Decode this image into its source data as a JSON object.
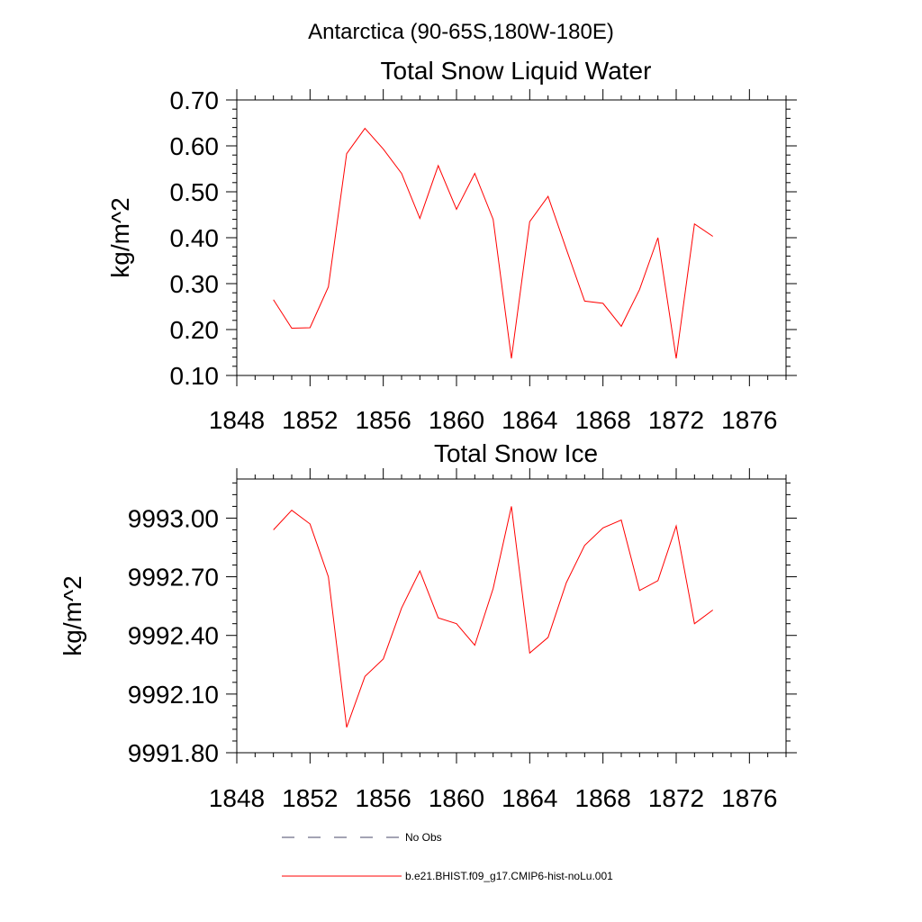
{
  "figure": {
    "supertitle": "Antarctica (90-65S,180W-180E)"
  },
  "legend": [
    {
      "label": "No Obs",
      "color": "#4a4a6a",
      "dash": true
    },
    {
      "label": "b.e21.BHIST.f09_g17.CMIP6-hist-noLu.001",
      "color": "#ff0000",
      "dash": false
    }
  ],
  "chart_data": [
    {
      "type": "line",
      "title": "Total Snow Liquid Water",
      "xlabel": "",
      "ylabel": "kg/m^2",
      "xlim": [
        1848,
        1878
      ],
      "ylim": [
        0.1,
        0.7
      ],
      "xticks": [
        1848,
        1852,
        1856,
        1860,
        1864,
        1868,
        1872,
        1876
      ],
      "yticks": [
        "0.10",
        "0.20",
        "0.30",
        "0.40",
        "0.50",
        "0.60",
        "0.70"
      ],
      "grid": false,
      "series": [
        {
          "name": "b.e21.BHIST.f09_g17.CMIP6-hist-noLu.001",
          "color": "#ff0000",
          "x": [
            1850,
            1851,
            1852,
            1853,
            1854,
            1855,
            1856,
            1857,
            1858,
            1859,
            1860,
            1861,
            1862,
            1863,
            1864,
            1865,
            1866,
            1867,
            1868,
            1869,
            1870,
            1871,
            1872,
            1873,
            1874
          ],
          "y": [
            0.265,
            0.203,
            0.204,
            0.293,
            0.583,
            0.638,
            0.593,
            0.54,
            0.442,
            0.557,
            0.462,
            0.54,
            0.44,
            0.137,
            0.435,
            0.49,
            0.375,
            0.262,
            0.257,
            0.207,
            0.287,
            0.4,
            0.137,
            0.43,
            0.403
          ]
        }
      ]
    },
    {
      "type": "line",
      "title": "Total Snow Ice",
      "xlabel": "",
      "ylabel": "kg/m^2",
      "xlim": [
        1848,
        1878
      ],
      "ylim": [
        9991.8,
        9993.2
      ],
      "xticks": [
        1848,
        1852,
        1856,
        1860,
        1864,
        1868,
        1872,
        1876
      ],
      "yticks": [
        "9991.80",
        "9992.10",
        "9992.40",
        "9992.70",
        "9993.00"
      ],
      "grid": false,
      "series": [
        {
          "name": "b.e21.BHIST.f09_g17.CMIP6-hist-noLu.001",
          "color": "#ff0000",
          "x": [
            1850,
            1851,
            1852,
            1853,
            1854,
            1855,
            1856,
            1857,
            1858,
            1859,
            1860,
            1861,
            1862,
            1863,
            1864,
            1865,
            1866,
            1867,
            1868,
            1869,
            1870,
            1871,
            1872,
            1873,
            1874
          ],
          "y": [
            9992.94,
            9993.04,
            9992.97,
            9992.7,
            9991.93,
            9992.19,
            9992.28,
            9992.54,
            9992.73,
            9992.49,
            9992.46,
            9992.35,
            9992.64,
            9993.06,
            9992.31,
            9992.39,
            9992.67,
            9992.86,
            9992.95,
            9992.99,
            9992.63,
            9992.68,
            9992.96,
            9992.46,
            9992.53
          ]
        }
      ]
    }
  ]
}
